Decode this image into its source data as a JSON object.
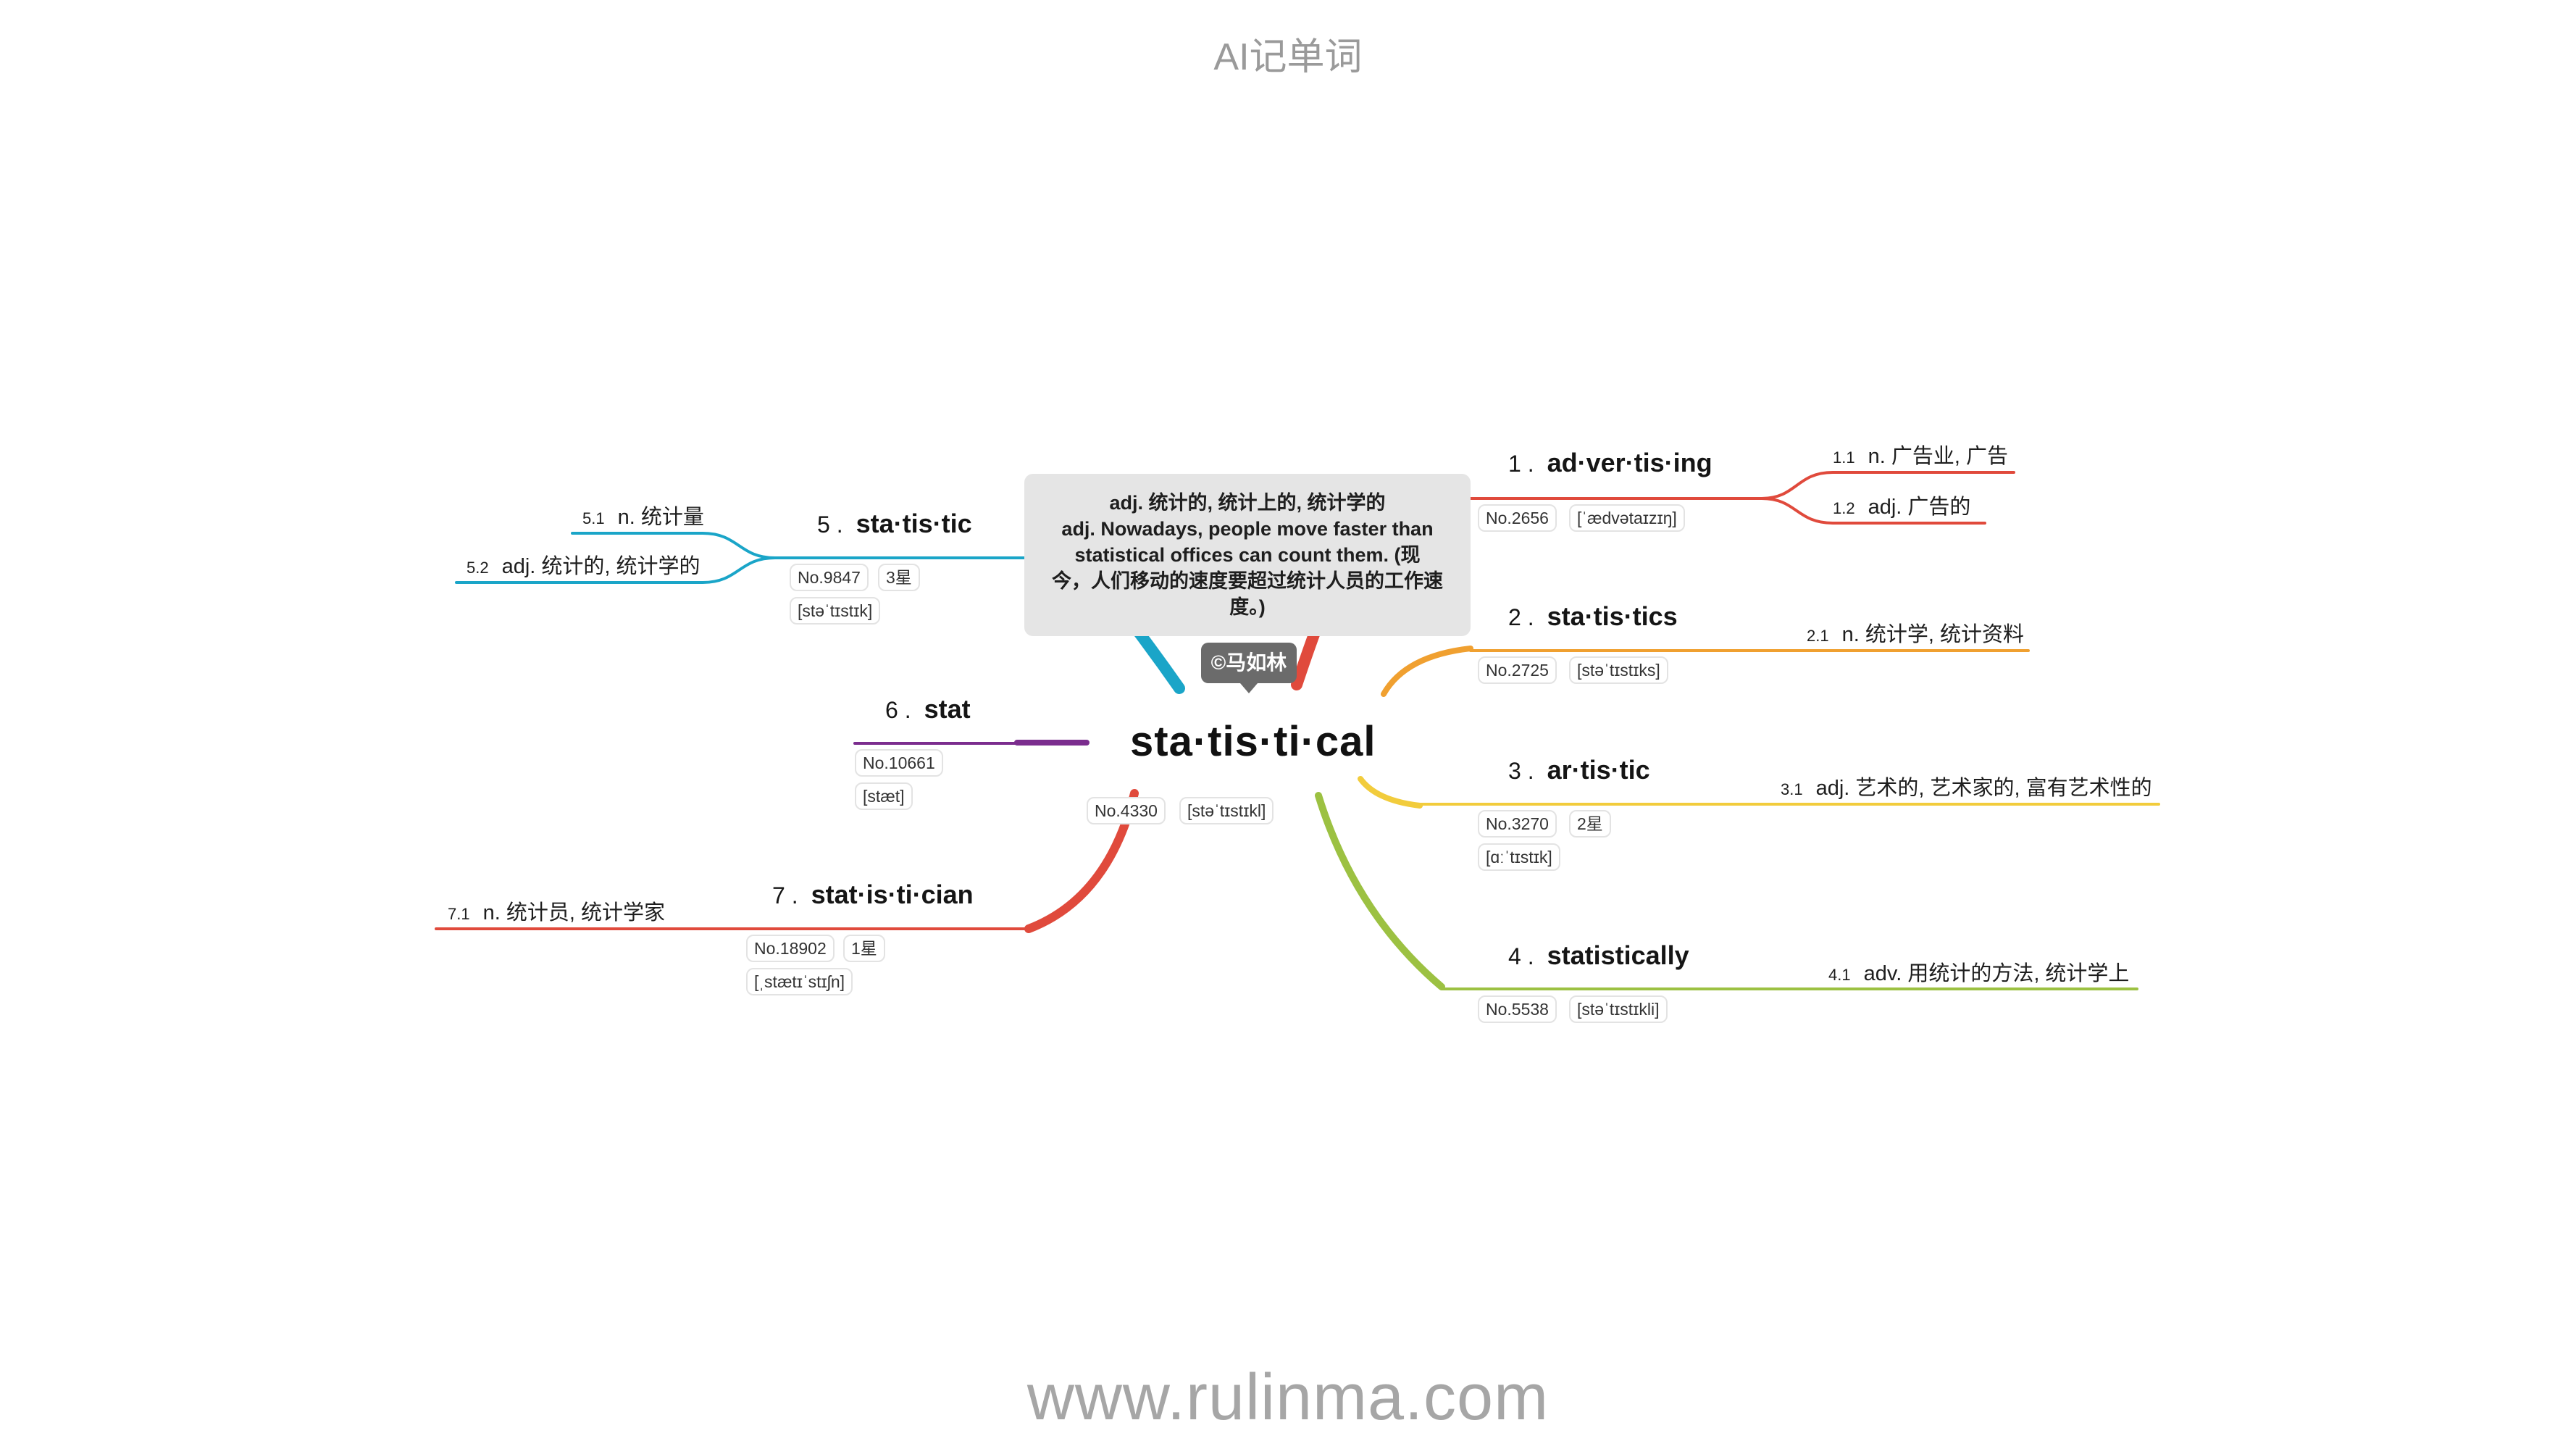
{
  "header": {
    "app_title": "AI记单词"
  },
  "footer": {
    "website": "www.rulinma.com"
  },
  "center": {
    "word": "sta·tis·ti·cal",
    "number": "No.4330",
    "phonetic": "[stəˈtɪstɪkl]",
    "tooltip_lines": [
      "adj. 统计的, 统计上的, 统计学的",
      "adj. Nowadays, people move faster than",
      "statistical offices can count them.      (现",
      "今，人们移动的速度要超过统计人员的工作速",
      "度。)"
    ],
    "author_badge": "©马如林"
  },
  "branches": [
    {
      "index": "1 .",
      "word": "ad·ver·tis·ing",
      "number": "No.2656",
      "phonetic": "[ˈædvətaɪzɪŋ]",
      "stars": "",
      "color": "#e04a3c",
      "senses": [
        {
          "num": "1.1",
          "text": "n. 广告业, 广告"
        },
        {
          "num": "1.2",
          "text": "adj. 广告的"
        }
      ]
    },
    {
      "index": "2 .",
      "word": "sta·tis·tics",
      "number": "No.2725",
      "phonetic": "[stəˈtɪstɪks]",
      "stars": "",
      "color": "#f0a030",
      "senses": [
        {
          "num": "2.1",
          "text": "n. 统计学, 统计资料"
        }
      ]
    },
    {
      "index": "3 .",
      "word": "ar·tis·tic",
      "number": "No.3270",
      "phonetic": "[ɑːˈtɪstɪk]",
      "stars": "2星",
      "color": "#f2cc3c",
      "senses": [
        {
          "num": "3.1",
          "text": "adj. 艺术的, 艺术家的, 富有艺术性的"
        }
      ]
    },
    {
      "index": "4 .",
      "word": "statistically",
      "number": "No.5538",
      "phonetic": "[stəˈtɪstɪkli]",
      "stars": "",
      "color": "#9cc142",
      "senses": [
        {
          "num": "4.1",
          "text": "adv. 用统计的方法, 统计学上"
        }
      ]
    },
    {
      "index": "5 .",
      "word": "sta·tis·tic",
      "number": "No.9847",
      "phonetic": "[stəˈtɪstɪk]",
      "stars": "3星",
      "color": "#1aa5c8",
      "senses": [
        {
          "num": "5.1",
          "text": "n. 统计量"
        },
        {
          "num": "5.2",
          "text": "adj. 统计的, 统计学的"
        }
      ]
    },
    {
      "index": "6 .",
      "word": "stat",
      "number": "No.10661",
      "phonetic": "[stæt]",
      "stars": "",
      "color": "#7b2d8e",
      "senses": []
    },
    {
      "index": "7 .",
      "word": "stat·is·ti·cian",
      "number": "No.18902",
      "phonetic": "[ˌstætɪˈstɪʃn]",
      "stars": "1星",
      "color": "#e04a3c",
      "senses": [
        {
          "num": "7.1",
          "text": "n. 统计员, 统计学家"
        }
      ]
    }
  ]
}
